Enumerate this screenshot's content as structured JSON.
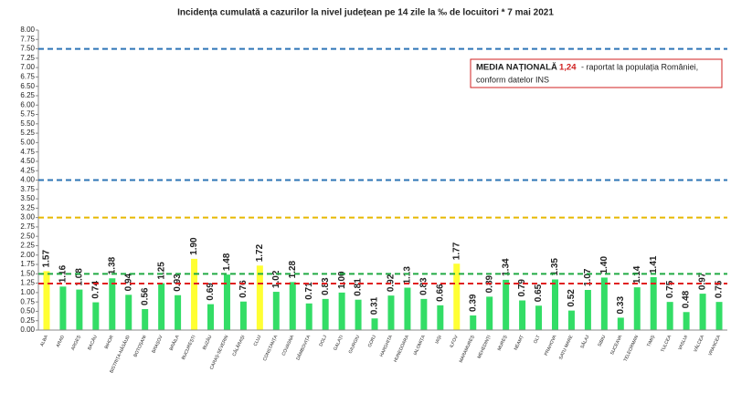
{
  "chart_data": {
    "type": "bar",
    "title": "Incidența cumulată a cazurilor la nivel județean pe 14 zile la ‰ de locuitori *  7 mai 2021",
    "categories": [
      "ALBA",
      "ARAD",
      "ARGEȘ",
      "BACĂU",
      "BIHOR",
      "BISTRIȚA-NĂSĂUD",
      "BOTOȘANI",
      "BRAȘOV",
      "BRĂILA",
      "BUCUREȘTI",
      "BUZĂU",
      "CARAȘ-SEVERIN",
      "CĂLĂRAȘI",
      "CLUJ",
      "CONSTANȚA",
      "COVASNA",
      "DÂMBOVIȚA",
      "DOLJ",
      "GALAȚI",
      "GIURGIU",
      "GORJ",
      "HARGHITA",
      "HUNEDOARA",
      "IALOMIȚA",
      "IAȘI",
      "ILFOV",
      "MARAMUREȘ",
      "MEHEDINȚI",
      "MUREȘ",
      "NEAMȚ",
      "OLT",
      "PRAHOVA",
      "SATU MARE",
      "SĂLAJ",
      "SIBIU",
      "SUCEAVA",
      "TELEORMAN",
      "TIMIȘ",
      "TULCEA",
      "VASLUI",
      "VÂLCEA",
      "VRANCEA"
    ],
    "values": [
      1.57,
      1.16,
      1.08,
      0.74,
      1.38,
      0.94,
      0.56,
      1.25,
      0.93,
      1.9,
      0.69,
      1.48,
      0.76,
      1.72,
      1.02,
      1.28,
      0.71,
      0.83,
      1.0,
      0.81,
      0.31,
      0.92,
      1.13,
      0.83,
      0.66,
      1.77,
      0.39,
      0.89,
      1.34,
      0.79,
      0.65,
      1.35,
      0.52,
      1.07,
      1.4,
      0.33,
      1.14,
      1.41,
      0.75,
      0.48,
      0.97,
      0.75
    ],
    "value_labels": [
      "1.57",
      "1.16",
      "1.08",
      "0.74",
      "1.38",
      "0.94",
      "0.56",
      "1.25",
      "0.93",
      "1.90",
      "0.69",
      "1.48",
      "0.76",
      "1.72",
      "1.02",
      "1.28",
      "0.71",
      "0.83",
      "1.00",
      "0.81",
      "0.31",
      "0.92",
      "1.13",
      "0.83",
      "0.66",
      "1.77",
      "0.39",
      "0.89",
      "1.34",
      "0.79",
      "0.65",
      "1.35",
      "0.52",
      "1.07",
      "1.40",
      "0.33",
      "1.14",
      "1.41",
      "0.75",
      "0.48",
      "0.97",
      "0.75"
    ],
    "colors": [
      "#ffff33",
      "#33dd66",
      "#33dd66",
      "#33dd66",
      "#33dd66",
      "#33dd66",
      "#33dd66",
      "#33dd66",
      "#33dd66",
      "#ffff33",
      "#33dd66",
      "#33dd66",
      "#33dd66",
      "#ffff33",
      "#33dd66",
      "#33dd66",
      "#33dd66",
      "#33dd66",
      "#33dd66",
      "#33dd66",
      "#33dd66",
      "#33dd66",
      "#33dd66",
      "#33dd66",
      "#33dd66",
      "#ffff33",
      "#33dd66",
      "#33dd66",
      "#33dd66",
      "#33dd66",
      "#33dd66",
      "#33dd66",
      "#33dd66",
      "#33dd66",
      "#33dd66",
      "#33dd66",
      "#33dd66",
      "#33dd66",
      "#33dd66",
      "#33dd66",
      "#33dd66",
      "#33dd66"
    ],
    "ylim": [
      0,
      8
    ],
    "yticks": [
      {
        "value": 0,
        "label": "0.00"
      },
      {
        "value": 0.25,
        "label": "0.25"
      },
      {
        "value": 0.5,
        "label": "0.50"
      },
      {
        "value": 0.75,
        "label": "0.75"
      },
      {
        "value": 1,
        "label": "1.00"
      },
      {
        "value": 1.25,
        "label": "1.25"
      },
      {
        "value": 1.5,
        "label": "1.50"
      },
      {
        "value": 1.75,
        "label": "1.75"
      },
      {
        "value": 2,
        "label": "2.00"
      },
      {
        "value": 2.25,
        "label": "2.25"
      },
      {
        "value": 2.5,
        "label": "2.50"
      },
      {
        "value": 2.75,
        "label": "2.75"
      },
      {
        "value": 3,
        "label": "3.00"
      },
      {
        "value": 3.25,
        "label": "3.25"
      },
      {
        "value": 3.5,
        "label": "3.50"
      },
      {
        "value": 3.75,
        "label": "3.75"
      },
      {
        "value": 4,
        "label": "4.00"
      },
      {
        "value": 4.25,
        "label": "4.25"
      },
      {
        "value": 4.5,
        "label": "4.50"
      },
      {
        "value": 4.75,
        "label": "4.75"
      },
      {
        "value": 5,
        "label": "5.00"
      },
      {
        "value": 5.25,
        "label": "5.25"
      },
      {
        "value": 5.5,
        "label": "5.50"
      },
      {
        "value": 5.75,
        "label": "5.75"
      },
      {
        "value": 6,
        "label": "6.00"
      },
      {
        "value": 6.25,
        "label": "6.25"
      },
      {
        "value": 6.5,
        "label": "6.50"
      },
      {
        "value": 6.75,
        "label": "6.75"
      },
      {
        "value": 7,
        "label": "7.00"
      },
      {
        "value": 7.25,
        "label": "7.25"
      },
      {
        "value": 7.5,
        "label": "7.50"
      },
      {
        "value": 7.75,
        "label": "7.75"
      },
      {
        "value": 8,
        "label": "8.00"
      }
    ],
    "reference_lines": [
      {
        "value": 7.5,
        "color": "#2e75b6"
      },
      {
        "value": 4,
        "color": "#2e75b6"
      },
      {
        "value": 3,
        "color": "#e6b800"
      },
      {
        "value": 1.5,
        "color": "#22aa44"
      },
      {
        "value": 1.24,
        "color": "#e02020"
      }
    ],
    "annotation": {
      "label": "MEDIA NAȚIONALĂ",
      "value_text": "1,24",
      "note_lines": [
        "- raportat la populația României,",
        "conform datelor INS"
      ]
    }
  }
}
